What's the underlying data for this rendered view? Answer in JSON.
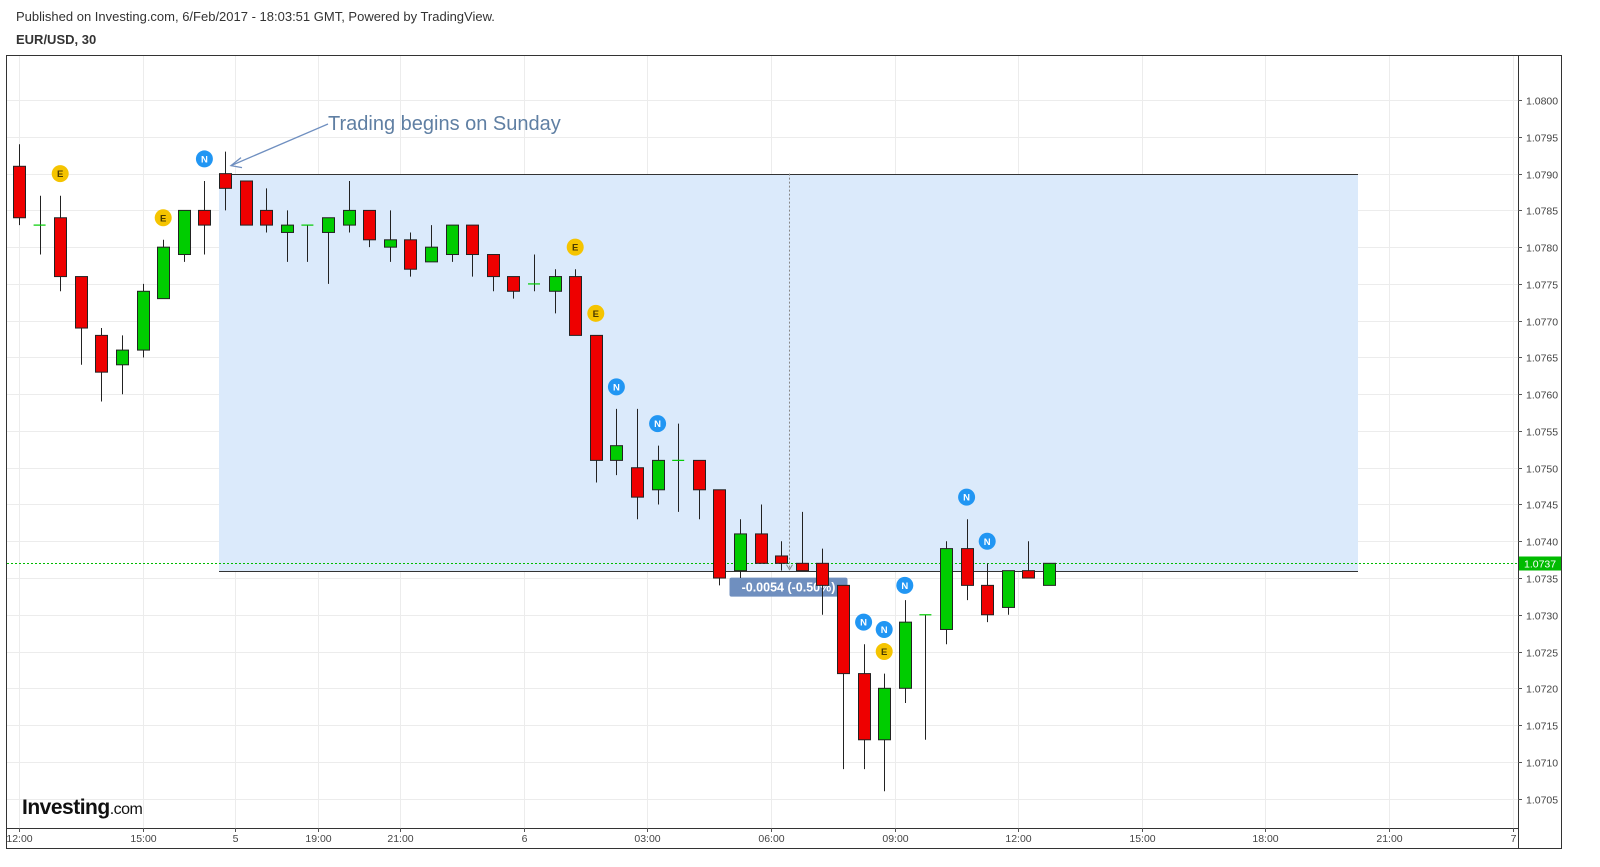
{
  "header": {
    "published": "Published on Investing.com, 6/Feb/2017 - 18:03:51 GMT, Powered by TradingView.",
    "symbol": "EUR/USD, 30"
  },
  "watermark": {
    "brand": "Investing",
    "suffix": ".com"
  },
  "colors": {
    "up": "#00cc00",
    "down": "#ee0000",
    "range_fill": "#dbeafb",
    "price_line": "#00bb00",
    "annotation_text": "#5f7fa3",
    "event_E": "#f5c400",
    "event_N": "#2196f3",
    "measure_label_bg": "#6f8fbf"
  },
  "chart_data": {
    "type": "candlestick",
    "title": "EUR/USD, 30",
    "ylim": [
      1.0701,
      1.0806
    ],
    "y_ticks": [
      "1.0705",
      "1.0710",
      "1.0715",
      "1.0720",
      "1.0725",
      "1.0730",
      "1.0735",
      "1.0740",
      "1.0745",
      "1.0750",
      "1.0755",
      "1.0760",
      "1.0765",
      "1.0770",
      "1.0775",
      "1.0780",
      "1.0785",
      "1.0790",
      "1.0795",
      "1.0800"
    ],
    "x_ticks": [
      {
        "bar": 0,
        "label": "12:00"
      },
      {
        "bar": 6,
        "label": "15:00"
      },
      {
        "bar": 10.5,
        "label": "5"
      },
      {
        "bar": 14.5,
        "label": "19:00"
      },
      {
        "bar": 18.5,
        "label": "21:00"
      },
      {
        "bar": 24.5,
        "label": "6"
      },
      {
        "bar": 30.5,
        "label": "03:00"
      },
      {
        "bar": 36.5,
        "label": "06:00"
      },
      {
        "bar": 42.5,
        "label": "09:00"
      },
      {
        "bar": 48.5,
        "label": "12:00"
      },
      {
        "bar": 54.5,
        "label": "15:00"
      },
      {
        "bar": 60.5,
        "label": "18:00"
      },
      {
        "bar": 66.5,
        "label": "21:00"
      },
      {
        "bar": 72.5,
        "label": "7"
      }
    ],
    "candles": [
      {
        "o": 1.0791,
        "h": 1.0794,
        "l": 1.0783,
        "c": 1.0784
      },
      {
        "o": 1.0783,
        "h": 1.0787,
        "l": 1.0779,
        "c": 1.0783
      },
      {
        "o": 1.0784,
        "h": 1.0787,
        "l": 1.0774,
        "c": 1.0776
      },
      {
        "o": 1.0776,
        "h": 1.0776,
        "l": 1.0764,
        "c": 1.0769
      },
      {
        "o": 1.0768,
        "h": 1.0769,
        "l": 1.0759,
        "c": 1.0763
      },
      {
        "o": 1.0764,
        "h": 1.0768,
        "l": 1.076,
        "c": 1.0766
      },
      {
        "o": 1.0766,
        "h": 1.0775,
        "l": 1.0765,
        "c": 1.0774
      },
      {
        "o": 1.0773,
        "h": 1.0781,
        "l": 1.0773,
        "c": 1.078
      },
      {
        "o": 1.0779,
        "h": 1.0785,
        "l": 1.0778,
        "c": 1.0785
      },
      {
        "o": 1.0785,
        "h": 1.0789,
        "l": 1.0779,
        "c": 1.0783
      },
      {
        "o": 1.079,
        "h": 1.0793,
        "l": 1.0785,
        "c": 1.0788
      },
      {
        "o": 1.0789,
        "h": 1.0789,
        "l": 1.0783,
        "c": 1.0783
      },
      {
        "o": 1.0785,
        "h": 1.0788,
        "l": 1.0782,
        "c": 1.0783
      },
      {
        "o": 1.0782,
        "h": 1.0785,
        "l": 1.0778,
        "c": 1.0783
      },
      {
        "o": 1.0783,
        "h": 1.0783,
        "l": 1.0778,
        "c": 1.0783
      },
      {
        "o": 1.0782,
        "h": 1.0784,
        "l": 1.0775,
        "c": 1.0784
      },
      {
        "o": 1.0783,
        "h": 1.0789,
        "l": 1.0782,
        "c": 1.0785
      },
      {
        "o": 1.0785,
        "h": 1.0785,
        "l": 1.078,
        "c": 1.0781
      },
      {
        "o": 1.078,
        "h": 1.0785,
        "l": 1.0778,
        "c": 1.0781
      },
      {
        "o": 1.0781,
        "h": 1.0782,
        "l": 1.0776,
        "c": 1.0777
      },
      {
        "o": 1.0778,
        "h": 1.0783,
        "l": 1.0778,
        "c": 1.078
      },
      {
        "o": 1.0779,
        "h": 1.0783,
        "l": 1.0778,
        "c": 1.0783
      },
      {
        "o": 1.0783,
        "h": 1.0783,
        "l": 1.0776,
        "c": 1.0779
      },
      {
        "o": 1.0779,
        "h": 1.0779,
        "l": 1.0774,
        "c": 1.0776
      },
      {
        "o": 1.0776,
        "h": 1.0776,
        "l": 1.0773,
        "c": 1.0774
      },
      {
        "o": 1.0775,
        "h": 1.0779,
        "l": 1.0774,
        "c": 1.0775
      },
      {
        "o": 1.0774,
        "h": 1.0777,
        "l": 1.0771,
        "c": 1.0776
      },
      {
        "o": 1.0776,
        "h": 1.0777,
        "l": 1.0768,
        "c": 1.0768
      },
      {
        "o": 1.0768,
        "h": 1.0768,
        "l": 1.0748,
        "c": 1.0751
      },
      {
        "o": 1.0751,
        "h": 1.0758,
        "l": 1.0749,
        "c": 1.0753
      },
      {
        "o": 1.075,
        "h": 1.0758,
        "l": 1.0743,
        "c": 1.0746
      },
      {
        "o": 1.0747,
        "h": 1.0753,
        "l": 1.0745,
        "c": 1.0751
      },
      {
        "o": 1.0751,
        "h": 1.0756,
        "l": 1.0744,
        "c": 1.0751
      },
      {
        "o": 1.0751,
        "h": 1.0751,
        "l": 1.0743,
        "c": 1.0747
      },
      {
        "o": 1.0747,
        "h": 1.0747,
        "l": 1.0734,
        "c": 1.0735
      },
      {
        "o": 1.0736,
        "h": 1.0743,
        "l": 1.0735,
        "c": 1.0741
      },
      {
        "o": 1.0741,
        "h": 1.0745,
        "l": 1.0737,
        "c": 1.0737
      },
      {
        "o": 1.0738,
        "h": 1.074,
        "l": 1.0736,
        "c": 1.0737
      },
      {
        "o": 1.0737,
        "h": 1.0744,
        "l": 1.0736,
        "c": 1.0736
      },
      {
        "o": 1.0737,
        "h": 1.0739,
        "l": 1.073,
        "c": 1.0734
      },
      {
        "o": 1.0734,
        "h": 1.0734,
        "l": 1.0709,
        "c": 1.0722
      },
      {
        "o": 1.0722,
        "h": 1.0726,
        "l": 1.0709,
        "c": 1.0713
      },
      {
        "o": 1.0713,
        "h": 1.0722,
        "l": 1.0706,
        "c": 1.072
      },
      {
        "o": 1.072,
        "h": 1.0732,
        "l": 1.0718,
        "c": 1.0729
      },
      {
        "o": 1.073,
        "h": 1.073,
        "l": 1.0713,
        "c": 1.073
      },
      {
        "o": 1.0728,
        "h": 1.074,
        "l": 1.0726,
        "c": 1.0739
      },
      {
        "o": 1.0739,
        "h": 1.0743,
        "l": 1.0732,
        "c": 1.0734
      },
      {
        "o": 1.0734,
        "h": 1.0737,
        "l": 1.0729,
        "c": 1.073
      },
      {
        "o": 1.0731,
        "h": 1.0736,
        "l": 1.073,
        "c": 1.0736
      },
      {
        "o": 1.0736,
        "h": 1.074,
        "l": 1.0735,
        "c": 1.0735
      },
      {
        "o": 1.0734,
        "h": 1.0737,
        "l": 1.0734,
        "c": 1.0737
      }
    ],
    "events": [
      {
        "bar": 2,
        "type": "E",
        "price": 1.079
      },
      {
        "bar": 7,
        "type": "E",
        "price": 1.0784
      },
      {
        "bar": 9,
        "type": "N",
        "price": 1.0792
      },
      {
        "bar": 27,
        "type": "E",
        "price": 1.078
      },
      {
        "bar": 28,
        "type": "E",
        "price": 1.0771
      },
      {
        "bar": 29,
        "type": "N",
        "price": 1.0761
      },
      {
        "bar": 31,
        "type": "N",
        "price": 1.0756
      },
      {
        "bar": 41,
        "type": "N",
        "price": 1.0729
      },
      {
        "bar": 42,
        "type": "N",
        "price": 1.0728
      },
      {
        "bar": 42,
        "type": "E",
        "price": 1.0725
      },
      {
        "bar": 43,
        "type": "N",
        "price": 1.0734
      },
      {
        "bar": 46,
        "type": "N",
        "price": 1.0746
      },
      {
        "bar": 47,
        "type": "N",
        "price": 1.074
      }
    ],
    "range_box": {
      "start_bar": 10,
      "end_bar": 65,
      "top": 1.079,
      "bottom": 1.0736
    },
    "measure": {
      "bar": 37.4,
      "from": 1.079,
      "to": 1.0736,
      "label": "-0.0054 (-0.50%)"
    },
    "current_price": {
      "value": 1.0737,
      "label": "1.0737"
    },
    "annotation": {
      "text": "Trading begins on Sunday",
      "target_bar": 10,
      "target_price": 1.079
    }
  }
}
